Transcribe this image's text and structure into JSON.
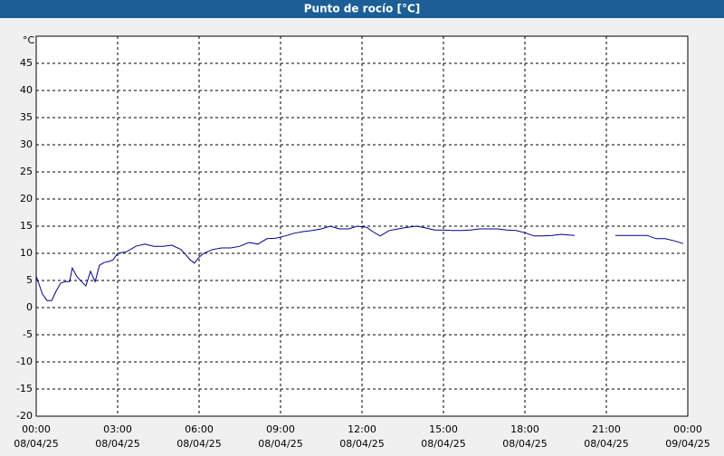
{
  "chart_data": {
    "type": "line",
    "title": "Punto de rocío [°C]",
    "y_unit": "°C",
    "xlim": [
      0,
      24
    ],
    "ylim": [
      -20,
      50
    ],
    "xticks": [
      {
        "value": 0,
        "label": "00:00",
        "date": "08/04/25"
      },
      {
        "value": 3,
        "label": "03:00",
        "date": "08/04/25"
      },
      {
        "value": 6,
        "label": "06:00",
        "date": "08/04/25"
      },
      {
        "value": 9,
        "label": "09:00",
        "date": "08/04/25"
      },
      {
        "value": 12,
        "label": "12:00",
        "date": "08/04/25"
      },
      {
        "value": 15,
        "label": "15:00",
        "date": "08/04/25"
      },
      {
        "value": 18,
        "label": "18:00",
        "date": "08/04/25"
      },
      {
        "value": 21,
        "label": "21:00",
        "date": "08/04/25"
      },
      {
        "value": 24,
        "label": "00:00",
        "date": "09/04/25"
      }
    ],
    "yticks": [
      -20,
      -15,
      -10,
      -5,
      0,
      5,
      10,
      15,
      20,
      25,
      30,
      35,
      40,
      45
    ],
    "grid": true,
    "x": [
      0,
      0.23,
      0.4,
      0.57,
      0.73,
      0.9,
      1.07,
      1.23,
      1.33,
      1.5,
      1.67,
      1.83,
      2,
      2.17,
      2.33,
      2.5,
      2.67,
      2.83,
      3,
      3.33,
      3.67,
      4,
      4.33,
      4.67,
      5,
      5.33,
      5.5,
      5.67,
      5.83,
      6,
      6.17,
      6.5,
      6.83,
      7.17,
      7.5,
      7.83,
      8.17,
      8.5,
      8.83,
      9.17,
      9.5,
      9.83,
      10.17,
      10.5,
      10.83,
      11.17,
      11.5,
      11.83,
      12.17,
      12.4,
      12.67,
      13,
      13.33,
      13.67,
      14,
      14.33,
      14.67,
      15,
      15.33,
      15.67,
      16,
      16.33,
      16.67,
      17,
      17.33,
      17.67,
      18,
      18.33,
      18.67,
      19,
      19.33,
      19.83,
      20.5,
      21.33,
      21.67,
      22,
      22.5,
      22.83,
      23.17,
      23.5,
      23.83
    ],
    "series": [
      {
        "name": "Punto de rocío",
        "color": "#00008b",
        "values": [
          5.8,
          2.5,
          1.3,
          1.3,
          3,
          4.5,
          4.8,
          4.8,
          7.3,
          5.7,
          4.8,
          4,
          6.7,
          4.8,
          7.8,
          8.3,
          8.5,
          8.8,
          10,
          10.3,
          11.3,
          11.7,
          11.3,
          11.3,
          11.5,
          10.7,
          9.8,
          8.8,
          8.2,
          9.3,
          10,
          10.7,
          11,
          11,
          11.3,
          12,
          11.7,
          12.7,
          12.8,
          13.2,
          13.7,
          14,
          14.2,
          14.5,
          15,
          14.5,
          14.5,
          15,
          14.8,
          14,
          13.2,
          14.2,
          14.5,
          14.8,
          15,
          14.7,
          14.3,
          14.3,
          14.2,
          14.2,
          14.3,
          14.5,
          14.5,
          14.5,
          14.3,
          14.2,
          13.8,
          13.2,
          13.2,
          13.3,
          13.5,
          13.3,
          null,
          13.3,
          13.3,
          13.3,
          13.3,
          12.7,
          12.7,
          12.3,
          11.8
        ]
      }
    ]
  }
}
